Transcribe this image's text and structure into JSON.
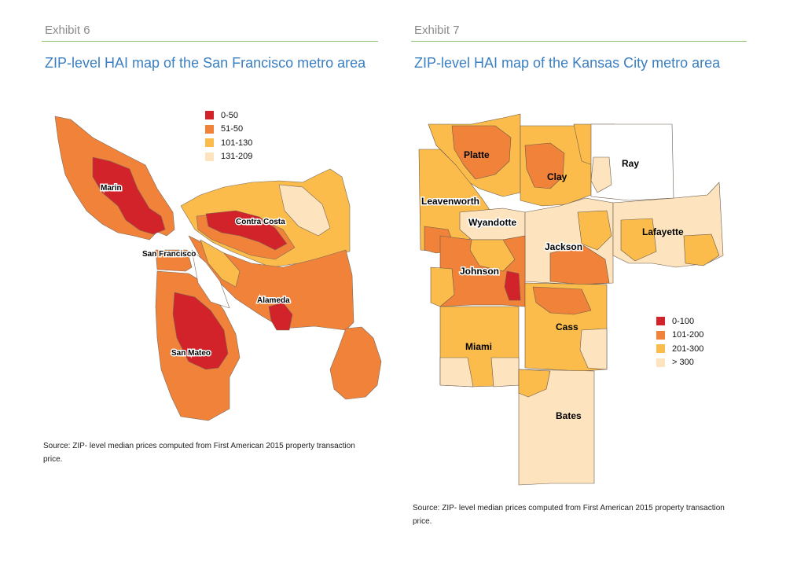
{
  "exhibit6": {
    "label": "Exhibit 6",
    "title": "ZIP-level HAI map of the San Francisco metro area",
    "source": "Source: ZIP- level median prices computed from First American 2015 property transaction price.",
    "legend": [
      {
        "range": "0-50",
        "color": "#d2232a"
      },
      {
        "range": "51-50",
        "color": "#f0823a"
      },
      {
        "range": "101-130",
        "color": "#fbbc4c"
      },
      {
        "range": "131-209",
        "color": "#fde4bf"
      }
    ],
    "region_labels": [
      "Marin",
      "Contra Costa",
      "San Francisco",
      "Alameda",
      "San Mateo"
    ]
  },
  "exhibit7": {
    "label": "Exhibit 7",
    "title": "ZIP-level HAI map of the Kansas City metro area",
    "source": "Source: ZIP- level median prices computed from First American 2015 property transaction price.",
    "legend": [
      {
        "range": "0-100",
        "color": "#d2232a"
      },
      {
        "range": "101-200",
        "color": "#f0823a"
      },
      {
        "range": "201-300",
        "color": "#fbbc4c"
      },
      {
        "range": "> 300",
        "color": "#fde4bf"
      }
    ],
    "region_labels": [
      "Platte",
      "Clay",
      "Ray",
      "Leavenworth",
      "Wyandotte",
      "Lafayette",
      "Jackson",
      "Johnson",
      "Cass",
      "Miami",
      "Bates"
    ]
  }
}
